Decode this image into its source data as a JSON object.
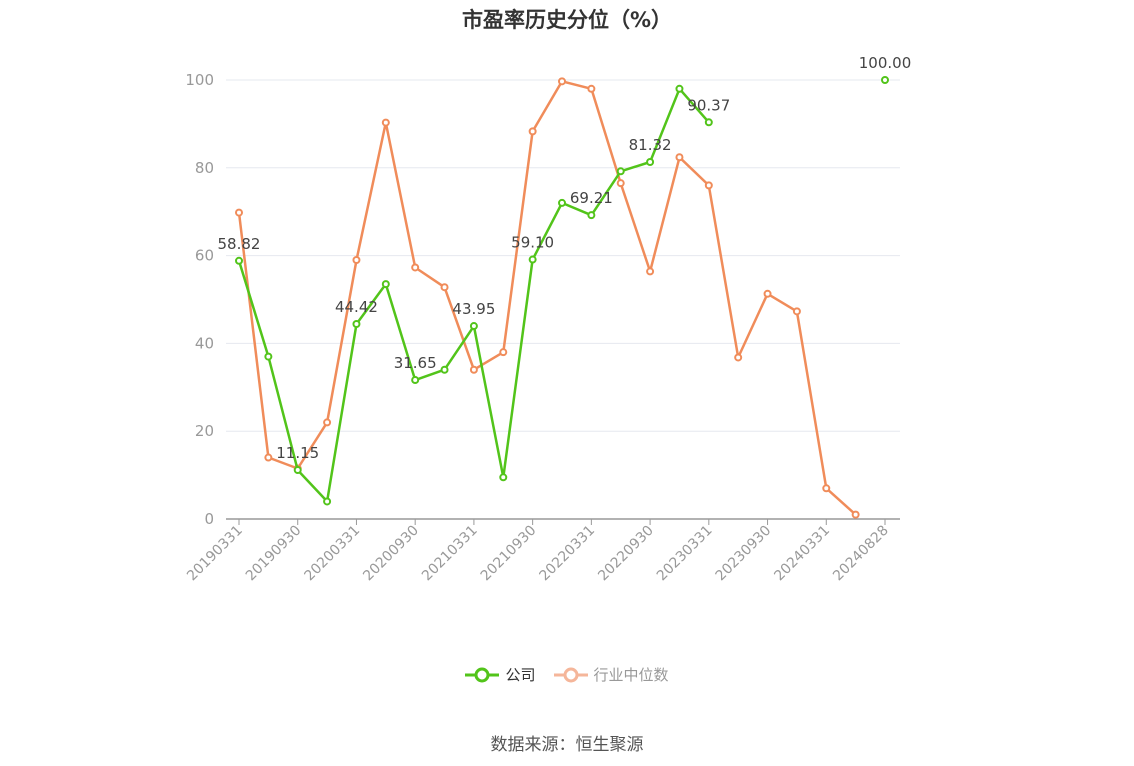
{
  "chart_data": {
    "type": "line",
    "title": "市盈率历史分位（%）",
    "xlabel": "",
    "ylabel": "",
    "ylim": [
      0,
      100
    ],
    "yticks": [
      0,
      20,
      40,
      60,
      80,
      100
    ],
    "grid": true,
    "legend_position": "bottom-center",
    "x": [
      "20190331",
      "20190630",
      "20190930",
      "20191231",
      "20200331",
      "20200630",
      "20200930",
      "20201231",
      "20210331",
      "20210630",
      "20210930",
      "20211231",
      "20220331",
      "20220630",
      "20220930",
      "20221231",
      "20230331",
      "20230630",
      "20230930",
      "20231231",
      "20240331",
      "20240630",
      "20240828"
    ],
    "x_tick_labels": [
      "20190331",
      "20190930",
      "20200331",
      "20200930",
      "20210331",
      "20210930",
      "20220331",
      "20220930",
      "20230331",
      "20230930",
      "20240331",
      "20240828"
    ],
    "series": [
      {
        "name": "公司",
        "color": "#52c41a",
        "values": [
          58.82,
          37.0,
          11.15,
          4.0,
          44.42,
          53.5,
          31.65,
          34.0,
          43.95,
          9.5,
          59.1,
          72.0,
          69.21,
          79.2,
          81.32,
          98.0,
          90.37,
          null,
          null,
          null,
          null,
          null,
          100.0
        ],
        "labels": {
          "0": "58.82",
          "2": "11.15",
          "4": "44.42",
          "6": "31.65",
          "8": "43.95",
          "10": "59.10",
          "12": "69.21",
          "14": "81.32",
          "16": "90.37",
          "22": "100.00"
        }
      },
      {
        "name": "行业中位数",
        "color": "#f08c5a",
        "values": [
          69.8,
          14.0,
          11.5,
          22.0,
          59.0,
          90.3,
          57.3,
          52.8,
          34.0,
          38.0,
          88.3,
          99.7,
          98.0,
          76.5,
          56.4,
          82.4,
          76.0,
          36.8,
          51.3,
          47.3,
          7.0,
          1.0,
          null
        ]
      }
    ]
  },
  "legend": {
    "items": [
      {
        "label": "公司",
        "color": "#52c41a"
      },
      {
        "label": "行业中位数",
        "color": "#f5b69a"
      }
    ]
  },
  "source": "数据来源：恒生聚源"
}
